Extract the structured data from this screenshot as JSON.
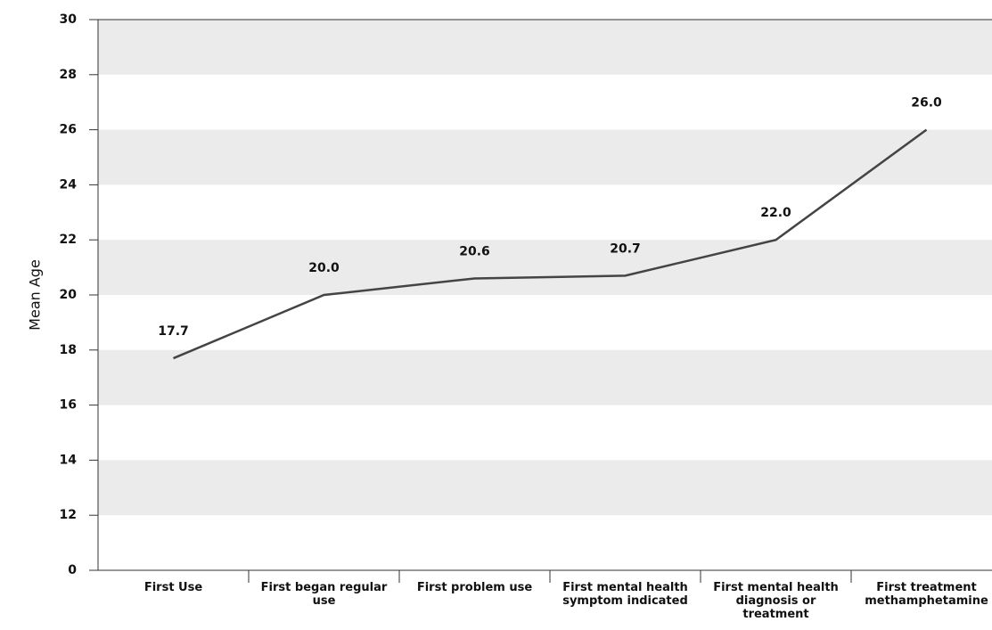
{
  "chart_data": {
    "type": "line",
    "y_label": "Mean Age",
    "categories": [
      "First Use",
      "First began regular use",
      "First problem use",
      "First mental health symptom indicated",
      "First mental health diagnosis or treatment",
      "First treatment methamphetamine"
    ],
    "values": [
      17.7,
      20,
      20.6,
      20.7,
      22,
      26
    ],
    "value_labels": [
      "17.7",
      "20.0",
      "20.6",
      "20.7",
      "22.0",
      "26.0"
    ],
    "color": "#444444",
    "ylim": [
      0,
      30
    ],
    "yticks": [
      0,
      12,
      14,
      16,
      18,
      20,
      22,
      24,
      26,
      28,
      30
    ],
    "grid": true
  }
}
